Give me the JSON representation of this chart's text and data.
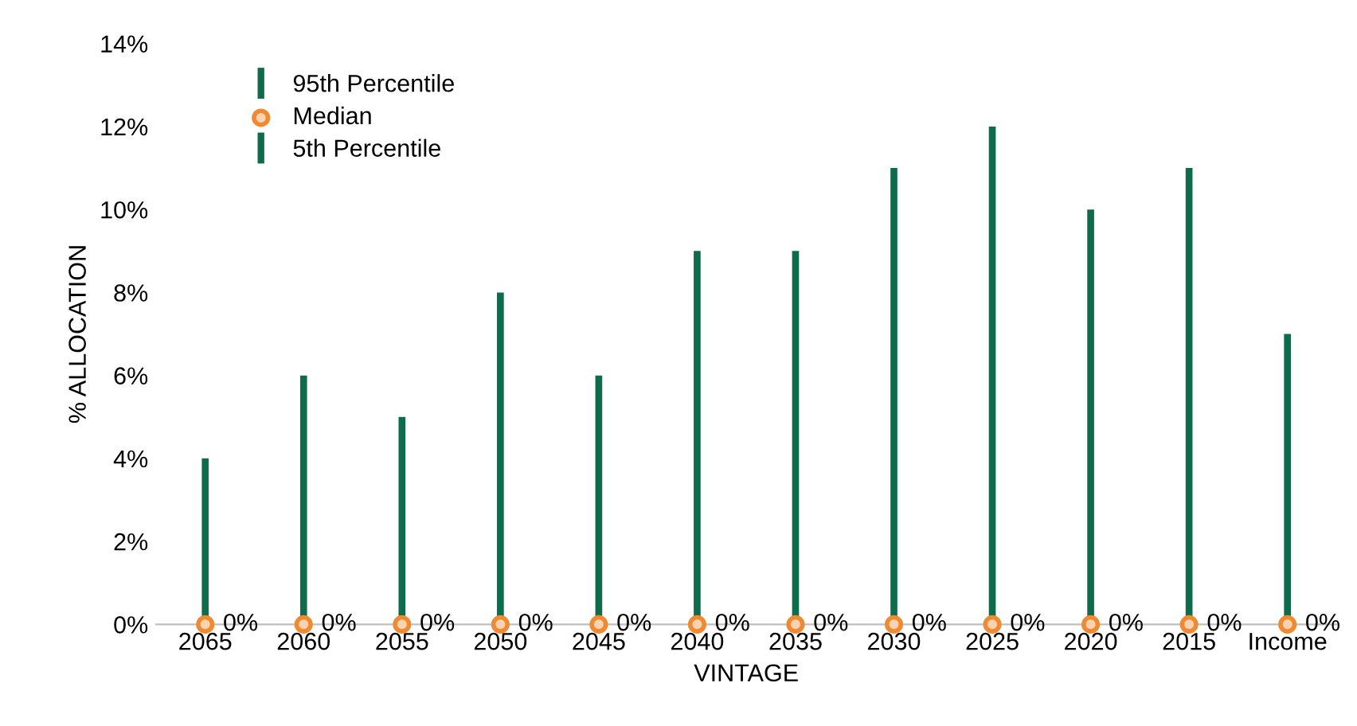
{
  "chart_data": {
    "type": "bar",
    "xlabel": "VINTAGE",
    "ylabel": "% ALLOCATION",
    "categories": [
      "2065",
      "2060",
      "2055",
      "2050",
      "2045",
      "2040",
      "2035",
      "2030",
      "2025",
      "2020",
      "2015",
      "Income"
    ],
    "series": [
      {
        "name": "95th Percentile",
        "color": "#0e6b4c",
        "values": [
          4,
          6,
          5,
          8,
          6,
          9,
          9,
          11,
          12,
          10,
          11,
          7
        ]
      },
      {
        "name": "Median",
        "type": "scatter",
        "color": "#f08a32",
        "marker": "circle",
        "values": [
          0,
          0,
          0,
          0,
          0,
          0,
          0,
          0,
          0,
          0,
          0,
          0
        ],
        "value_labels": [
          "0%",
          "0%",
          "0%",
          "0%",
          "0%",
          "0%",
          "0%",
          "0%",
          "0%",
          "0%",
          "0%",
          "0%"
        ]
      },
      {
        "name": "5th Percentile",
        "type": "bar",
        "color": "#0e6b4c",
        "values": [
          0,
          0,
          0,
          0,
          0,
          0,
          0,
          0,
          0,
          0,
          0,
          0
        ]
      }
    ],
    "ylim": [
      0,
      14
    ],
    "yticks": [
      {
        "value": 0,
        "label": "0%"
      },
      {
        "value": 2,
        "label": "2%"
      },
      {
        "value": 4,
        "label": "4%"
      },
      {
        "value": 6,
        "label": "6%"
      },
      {
        "value": 8,
        "label": "8%"
      },
      {
        "value": 10,
        "label": "10%"
      },
      {
        "value": 12,
        "label": "12%"
      },
      {
        "value": 14,
        "label": "14%"
      }
    ],
    "grid": false,
    "legend": "top left"
  }
}
